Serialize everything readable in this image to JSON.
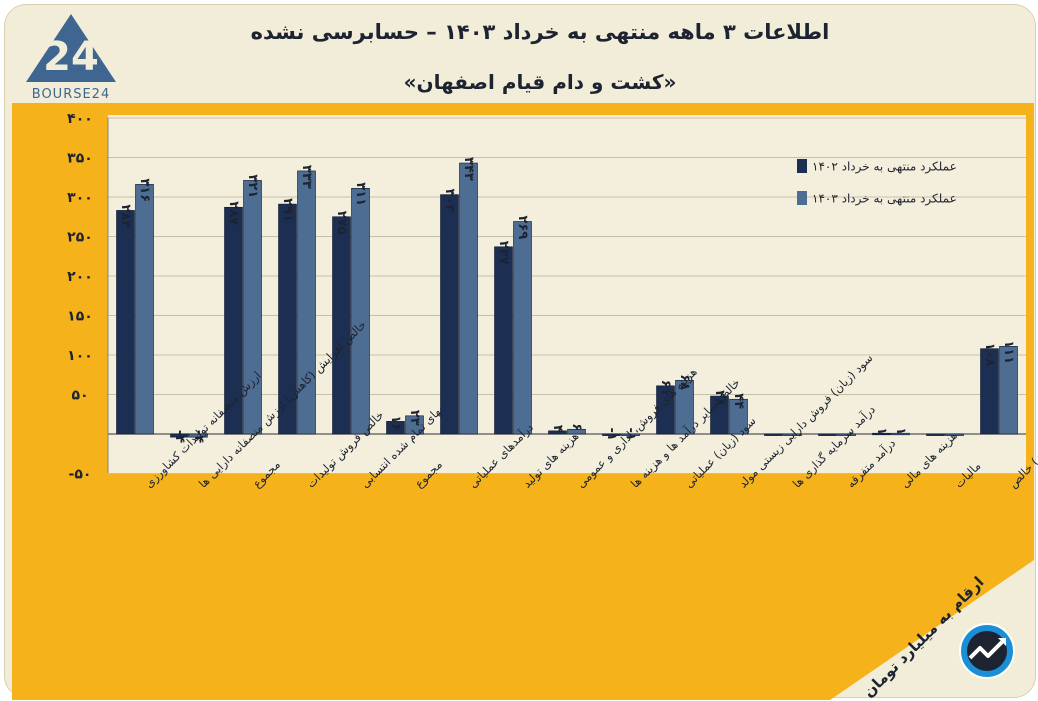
{
  "header": {
    "title": "اطلاعات ۳ ماهه منتهی به خرداد ۱۴۰۳ – حسابرسی نشده",
    "subtitle": "«کشت و دام قیام اصفهان»",
    "logo_text": "BOURSE24",
    "unit_note": "ارقام به میلیارد تومان"
  },
  "colors": {
    "background": "#f2edd9",
    "plot_band": "#f5b21b",
    "plot_area": "#f4efdc",
    "series_1402": "#1c2f52",
    "series_1403": "#4e6d93"
  },
  "chart_data": {
    "type": "bar",
    "ylim": [
      -50,
      400
    ],
    "yticks": [
      -50,
      50,
      100,
      150,
      200,
      250,
      300,
      350,
      400
    ],
    "ytick_labels": [
      "-۵۰",
      "۵۰",
      "۱۰۰",
      "۱۵۰",
      "۲۰۰",
      "۲۵۰",
      "۳۰۰",
      "۳۵۰",
      "۴۰۰"
    ],
    "categories": [
      "ارزش منصفانه تولیدات کشاورزی",
      "خالص افزایش (کاهش) ارزش منصفانه دارایی ها",
      "مجموع",
      "خالص فروش تولیدات",
      "بهای تمام شده انتسابی",
      "مجموع",
      "درآمدهای عملیاتی",
      "هزینه های تولید",
      "هزینه های فروش، اداری و عمومی",
      "خالص سایر درآمد ها و هزینه ها",
      "سود (زیان) عملیاتی",
      "سود (زیان) فروش دارایی زیستی مولد",
      "درآمد سرمایه گذاری ها",
      "درآمد متفرقه",
      "هزینه های مالی",
      "مالیات",
      "سود (زیان) خالص"
    ],
    "series": [
      {
        "name": "عملکرد منتهی به خرداد ۱۴۰۲",
        "values": [
          283,
          -4,
          287,
          291,
          275,
          16,
          303,
          237,
          4,
          -1,
          61,
          48,
          0,
          0,
          1,
          0,
          108
        ],
        "labels": [
          "۲۸۳",
          "-۴",
          "۲۸۷",
          "۲۹۱",
          "۲۷۵",
          "۱۶",
          "۳۰۳",
          "۲۳۷",
          "۴",
          "-۱",
          "۶۱",
          "۴۸",
          "",
          "",
          "۱",
          "",
          "۱۰۸"
        ]
      },
      {
        "name": "عملکرد منتهی به خرداد ۱۴۰۳",
        "values": [
          316,
          -4,
          321,
          333,
          311,
          23,
          343,
          269,
          6,
          -1,
          68,
          44,
          0,
          0,
          1,
          0,
          111
        ],
        "labels": [
          "۳۱۶",
          "-۴",
          "۳۲۱",
          "۳۳۳",
          "۳۱۱",
          "۲۳",
          "۳۴۳",
          "۲۶۹",
          "۶",
          "-۱",
          "۶۸",
          "۴۴",
          "",
          "",
          "۱",
          "",
          "۱۱۱"
        ]
      }
    ],
    "legend_position": "top-right",
    "grid": true
  }
}
